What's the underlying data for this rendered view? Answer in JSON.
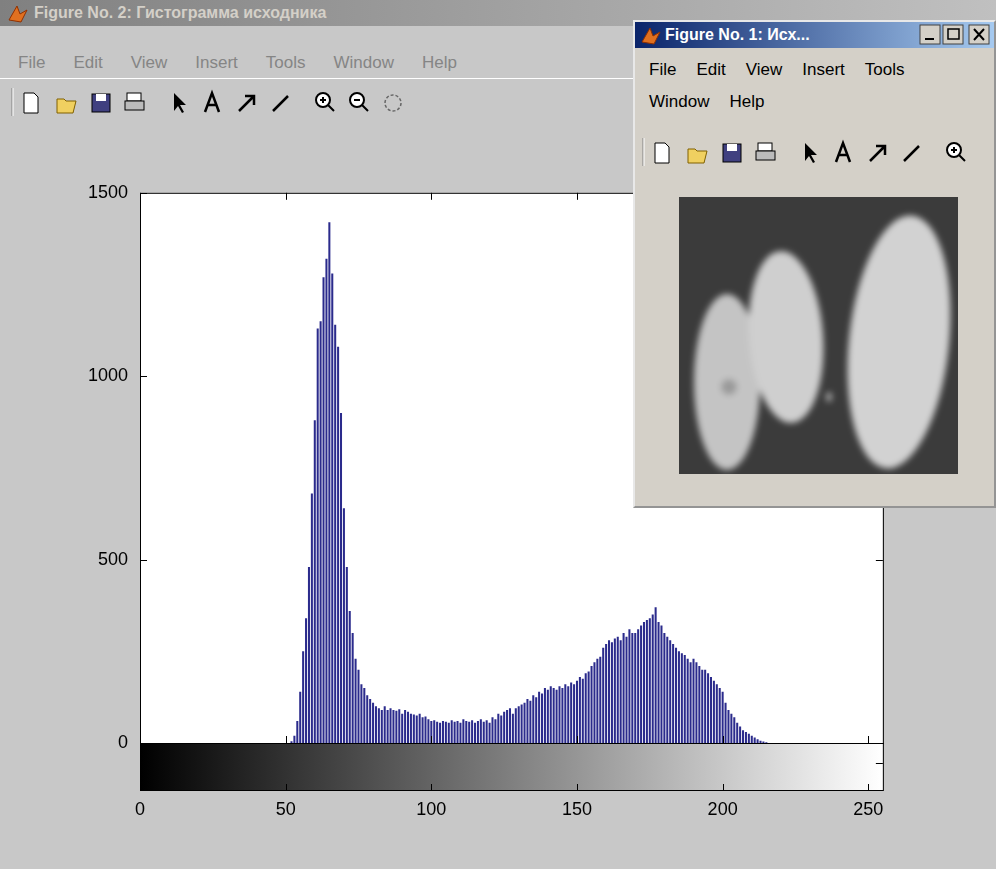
{
  "windows": [
    {
      "title": "Figure No. 2: Гистограмма исходника",
      "menu": [
        "File",
        "Edit",
        "View",
        "Insert",
        "Tools",
        "Window",
        "Help"
      ]
    },
    {
      "title": "Figure No. 1: Исх...",
      "menu": [
        "File",
        "Edit",
        "View",
        "Insert",
        "Tools",
        "Window",
        "Help"
      ]
    }
  ],
  "chart_data": {
    "type": "histogram",
    "bins": [
      -0.5,
      0.5,
      1.5,
      2.5,
      3.5,
      4.5,
      5.5,
      6.5,
      7.5,
      8.5,
      9.5,
      10.5,
      11.5,
      12.5,
      13.5,
      14.5,
      15.5,
      16.5,
      17.5,
      18.5,
      19.5,
      20.5,
      21.5,
      22.5,
      23.5,
      24.5,
      25.5,
      26.5,
      27.5,
      28.5,
      29.5,
      30.5,
      31.5,
      32.5,
      33.5,
      34.5,
      35.5,
      36.5,
      37.5,
      38.5,
      39.5,
      40.5,
      41.5,
      42.5,
      43.5,
      44.5,
      45.5,
      46.5,
      47.5,
      48.5,
      49.5,
      50.5,
      51.5,
      52.5,
      53.5,
      54.5,
      55.5,
      56.5,
      57.5,
      58.5,
      59.5,
      60.5,
      61.5,
      62.5,
      63.5,
      64.5,
      65.5,
      66.5,
      67.5,
      68.5,
      69.5,
      70.5,
      71.5,
      72.5,
      73.5,
      74.5,
      75.5,
      76.5,
      77.5,
      78.5,
      79.5,
      80.5,
      81.5,
      82.5,
      83.5,
      84.5,
      85.5,
      86.5,
      87.5,
      88.5,
      89.5,
      90.5,
      91.5,
      92.5,
      93.5,
      94.5,
      95.5,
      96.5,
      97.5,
      98.5,
      99.5,
      100.5,
      101.5,
      102.5,
      103.5,
      104.5,
      105.5,
      106.5,
      107.5,
      108.5,
      109.5,
      110.5,
      111.5,
      112.5,
      113.5,
      114.5,
      115.5,
      116.5,
      117.5,
      118.5,
      119.5,
      120.5,
      121.5,
      122.5,
      123.5,
      124.5,
      125.5,
      126.5,
      127.5,
      128.5,
      129.5,
      130.5,
      131.5,
      132.5,
      133.5,
      134.5,
      135.5,
      136.5,
      137.5,
      138.5,
      139.5,
      140.5,
      141.5,
      142.5,
      143.5,
      144.5,
      145.5,
      146.5,
      147.5,
      148.5,
      149.5,
      150.5,
      151.5,
      152.5,
      153.5,
      154.5,
      155.5,
      156.5,
      157.5,
      158.5,
      159.5,
      160.5,
      161.5,
      162.5,
      163.5,
      164.5,
      165.5,
      166.5,
      167.5,
      168.5,
      169.5,
      170.5,
      171.5,
      172.5,
      173.5,
      174.5,
      175.5,
      176.5,
      177.5,
      178.5,
      179.5,
      180.5,
      181.5,
      182.5,
      183.5,
      184.5,
      185.5,
      186.5,
      187.5,
      188.5,
      189.5,
      190.5,
      191.5,
      192.5,
      193.5,
      194.5,
      195.5,
      196.5,
      197.5,
      198.5,
      199.5,
      200.5,
      201.5,
      202.5,
      203.5,
      204.5,
      205.5,
      206.5,
      207.5,
      208.5,
      209.5,
      210.5,
      211.5,
      212.5,
      213.5,
      214.5,
      215.5,
      216.5,
      217.5,
      218.5,
      219.5,
      220.5,
      221.5,
      222.5,
      223.5,
      224.5,
      225.5,
      226.5,
      227.5,
      228.5,
      229.5,
      230.5,
      231.5,
      232.5,
      233.5,
      234.5,
      235.5,
      236.5,
      237.5,
      238.5,
      239.5,
      240.5,
      241.5,
      242.5,
      243.5,
      244.5,
      245.5,
      246.5,
      247.5,
      248.5,
      249.5,
      250.5,
      251.5,
      252.5,
      253.5,
      254.5,
      255.5
    ],
    "values": [
      0,
      0,
      0,
      0,
      0,
      0,
      0,
      0,
      0,
      0,
      0,
      0,
      0,
      0,
      0,
      0,
      0,
      0,
      0,
      0,
      0,
      0,
      0,
      0,
      0,
      0,
      0,
      0,
      0,
      0,
      0,
      0,
      0,
      0,
      0,
      0,
      0,
      0,
      0,
      0,
      0,
      0,
      0,
      0,
      0,
      0,
      0,
      0,
      0,
      0,
      0,
      0,
      5,
      20,
      60,
      140,
      250,
      340,
      480,
      680,
      880,
      1130,
      1150,
      1270,
      1320,
      1420,
      1280,
      1140,
      1080,
      900,
      640,
      480,
      360,
      300,
      230,
      200,
      160,
      150,
      130,
      120,
      110,
      100,
      95,
      90,
      100,
      90,
      95,
      90,
      88,
      92,
      80,
      90,
      85,
      80,
      78,
      75,
      80,
      70,
      72,
      65,
      60,
      62,
      58,
      55,
      60,
      58,
      55,
      62,
      58,
      60,
      55,
      65,
      60,
      58,
      62,
      55,
      60,
      65,
      58,
      62,
      55,
      70,
      65,
      80,
      75,
      85,
      90,
      95,
      80,
      95,
      100,
      105,
      110,
      120,
      115,
      130,
      125,
      140,
      135,
      150,
      145,
      155,
      150,
      145,
      155,
      150,
      160,
      155,
      165,
      160,
      170,
      180,
      175,
      190,
      195,
      210,
      220,
      230,
      235,
      260,
      270,
      280,
      275,
      285,
      290,
      280,
      300,
      290,
      310,
      300,
      300,
      310,
      320,
      330,
      335,
      340,
      350,
      370,
      330,
      320,
      300,
      290,
      280,
      270,
      260,
      250,
      245,
      240,
      230,
      220,
      230,
      220,
      210,
      200,
      200,
      190,
      180,
      170,
      160,
      150,
      140,
      110,
      90,
      80,
      70,
      55,
      45,
      35,
      30,
      25,
      20,
      15,
      10,
      6,
      4,
      2,
      0,
      0,
      0,
      0,
      0,
      0,
      0,
      0,
      0,
      0,
      0,
      0,
      0,
      0,
      0,
      0,
      0,
      0,
      0,
      0,
      0,
      0,
      0,
      0,
      0,
      0,
      0,
      0,
      0,
      0,
      0,
      0,
      0,
      0,
      0,
      0,
      0,
      0,
      0,
      0
    ],
    "color": "#2b2b8c",
    "xlim": [
      0,
      255
    ],
    "xticks": [
      0,
      50,
      100,
      150,
      200,
      250
    ],
    "ylim": [
      0,
      1500
    ],
    "yticks": [
      0,
      500,
      1000,
      1500
    ],
    "grid": false
  }
}
